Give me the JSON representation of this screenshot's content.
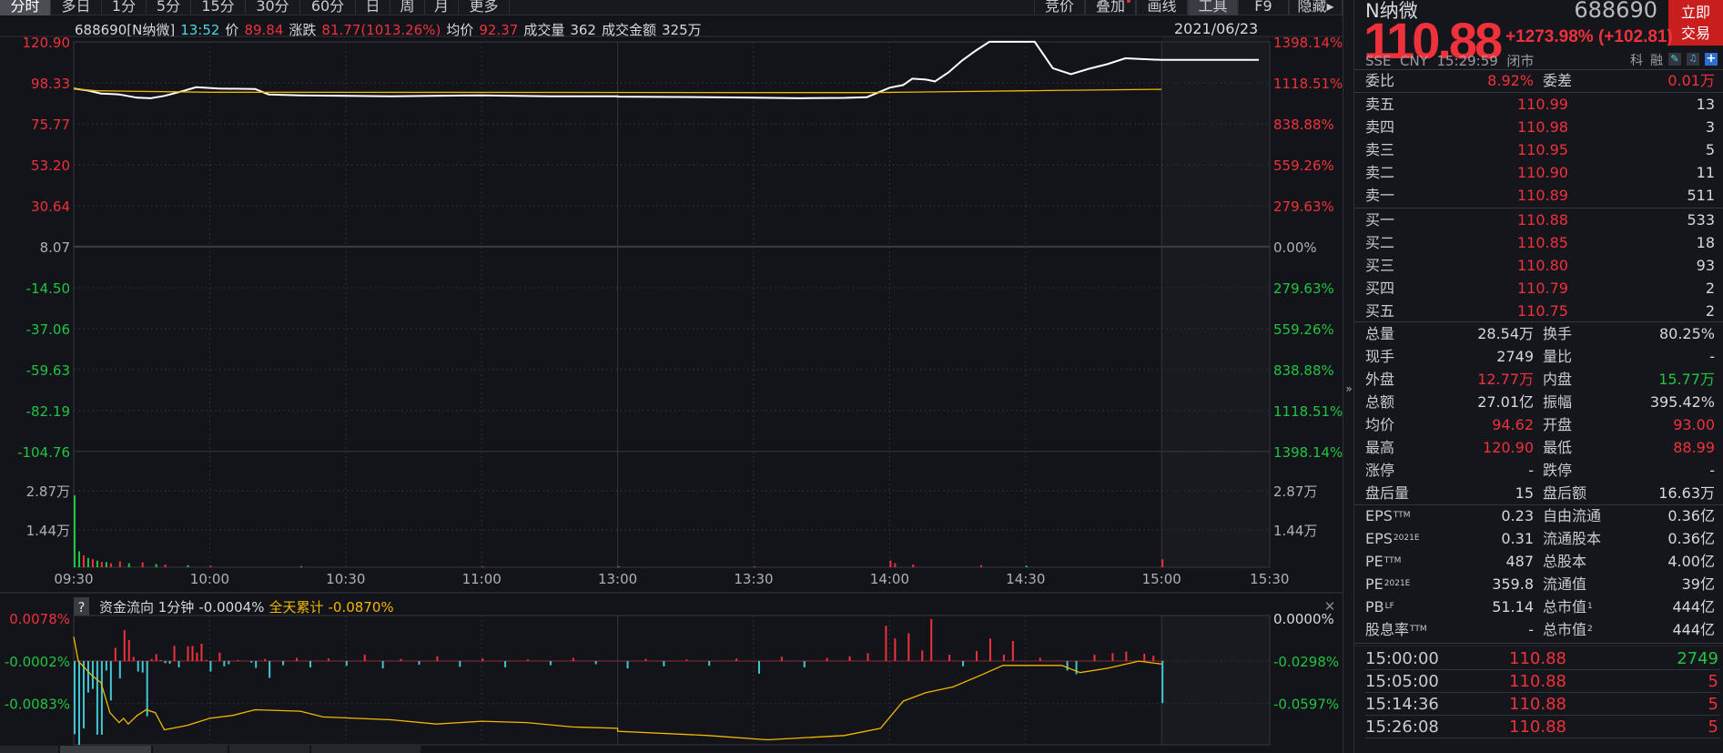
{
  "toolbar": {
    "left_tabs": [
      "分时",
      "多日",
      "1分",
      "5分",
      "15分",
      "30分",
      "60分",
      "日",
      "周",
      "月",
      "更多"
    ],
    "active_tab": "分时",
    "right_tabs": [
      "竞价",
      "叠加",
      "画线",
      "工具",
      "F9",
      "隐藏▸"
    ]
  },
  "info_bar": {
    "code_name": "688690[N纳微]",
    "time": "13:52",
    "price_label": "价",
    "price": "89.84",
    "change_label": "涨跌",
    "change": "81.77(1013.26%)",
    "avg_label": "均价",
    "avg": "92.37",
    "vol_label": "成交量",
    "vol": "362",
    "amount_label": "成交金额",
    "amount": "325万",
    "date": "2021/06/23"
  },
  "colors": {
    "up": "#f0313c",
    "down": "#21c442",
    "price_line": "#ffffff",
    "avg_line": "#f3b700",
    "flow_out": "#3fc8d4",
    "accent": "#c81e1e"
  },
  "chart_data": [
    {
      "type": "line",
      "name_hint": "price",
      "x_ticks": [
        "09:30",
        "10:00",
        "10:30",
        "11:00",
        "13:00",
        "13:30",
        "14:00",
        "14:30",
        "15:00",
        "15:30"
      ],
      "left_ticks": [
        "120.90",
        "98.33",
        "75.77",
        "53.20",
        "30.64",
        "8.07",
        "-14.50",
        "-37.06",
        "-59.63",
        "-82.19",
        "-104.76"
      ],
      "right_ticks": [
        "1398.14%",
        "1118.51%",
        "838.88%",
        "559.26%",
        "279.63%",
        "0.00%",
        "279.63%",
        "559.26%",
        "838.88%",
        "1118.51%",
        "1398.14%"
      ],
      "ylim": [
        -104.76,
        120.9
      ],
      "base": 8.07,
      "series": [
        {
          "key": "price",
          "points": [
            [
              "09:30",
              95.0
            ],
            [
              "09:33",
              94.0
            ],
            [
              "09:36",
              92.3
            ],
            [
              "09:40",
              91.8
            ],
            [
              "09:44",
              90.0
            ],
            [
              "09:47",
              89.7
            ],
            [
              "09:50",
              91.0
            ],
            [
              "09:54",
              93.6
            ],
            [
              "09:57",
              95.8
            ],
            [
              "10:02",
              95.0
            ],
            [
              "10:10",
              94.8
            ],
            [
              "10:13",
              91.8
            ],
            [
              "10:20",
              91.3
            ],
            [
              "10:40",
              90.8
            ],
            [
              "11:00",
              91.3
            ],
            [
              "11:15",
              90.8
            ],
            [
              "11:30",
              90.8
            ],
            [
              "13:00",
              90.6
            ],
            [
              "13:20",
              90.3
            ],
            [
              "13:30",
              90.0
            ],
            [
              "13:40",
              89.7
            ],
            [
              "13:50",
              89.9
            ],
            [
              "13:55",
              90.3
            ],
            [
              "14:00",
              95.5
            ],
            [
              "14:03",
              97.0
            ],
            [
              "14:05",
              100.5
            ],
            [
              "14:08",
              100.0
            ],
            [
              "14:10",
              99.0
            ],
            [
              "14:13",
              104.0
            ],
            [
              "14:16",
              110.6
            ],
            [
              "14:19",
              116.0
            ],
            [
              "14:22",
              120.9
            ],
            [
              "14:32",
              120.9
            ],
            [
              "14:36",
              106.3
            ],
            [
              "14:40",
              103.0
            ],
            [
              "14:44",
              106.0
            ],
            [
              "14:48",
              108.5
            ],
            [
              "14:52",
              111.8
            ],
            [
              "15:00",
              110.88
            ],
            [
              "15:27",
              110.88
            ]
          ]
        },
        {
          "key": "avg",
          "points": [
            [
              "09:30",
              94.9
            ],
            [
              "09:35",
              93.8
            ],
            [
              "10:00",
              93.0
            ],
            [
              "13:55",
              92.8
            ],
            [
              "14:10",
              93.2
            ],
            [
              "14:30",
              93.8
            ],
            [
              "15:00",
              94.62
            ]
          ]
        }
      ]
    },
    {
      "type": "bar",
      "name_hint": "volume",
      "ticks": [
        "2.87万",
        "1.44万"
      ],
      "unit": "万",
      "ylim": [
        0,
        2.87
      ],
      "bars": [
        [
          "09:30",
          2.7,
          "down"
        ],
        [
          "09:31",
          0.6,
          "down"
        ],
        [
          "09:32",
          0.45,
          "up"
        ],
        [
          "09:33",
          0.35,
          "down"
        ],
        [
          "09:34",
          0.3,
          "up"
        ],
        [
          "09:35",
          0.25,
          "down"
        ],
        [
          "09:36",
          0.2,
          "up"
        ],
        [
          "09:37",
          0.2,
          "down"
        ],
        [
          "09:38",
          0.15,
          "up"
        ],
        [
          "09:40",
          0.22,
          "up"
        ],
        [
          "09:42",
          0.15,
          "down"
        ],
        [
          "09:45",
          0.18,
          "up"
        ],
        [
          "09:48",
          0.12,
          "down"
        ],
        [
          "09:50",
          0.1,
          "up"
        ],
        [
          "09:55",
          0.08,
          "down"
        ],
        [
          "10:00",
          0.06,
          "up"
        ],
        [
          "10:20",
          0.04,
          "down"
        ],
        [
          "11:00",
          0.03,
          "up"
        ],
        [
          "13:00",
          0.04,
          "down"
        ],
        [
          "13:30",
          0.03,
          "up"
        ],
        [
          "14:00",
          0.25,
          "up"
        ],
        [
          "14:01",
          0.15,
          "up"
        ],
        [
          "14:05",
          0.1,
          "up"
        ],
        [
          "14:20",
          0.08,
          "up"
        ],
        [
          "14:30",
          0.06,
          "down"
        ],
        [
          "15:00",
          0.3,
          "up"
        ]
      ]
    },
    {
      "type": "bar",
      "name_hint": "fund_flow",
      "header": {
        "help": "?",
        "title": "资金流向 1分钟",
        "value": "-0.0004%",
        "cum_label": "全天累计",
        "cum_value": "-0.0870%"
      },
      "left_ticks": [
        "0.0078%",
        "-0.0002%",
        "-0.0083%"
      ],
      "right_ticks": [
        "0.0000%",
        "-0.0298%",
        "-0.0597%"
      ],
      "bars": [
        [
          "09:30",
          -0.0139
        ],
        [
          "09:31",
          -0.0165
        ],
        [
          "09:32",
          -0.0128
        ],
        [
          "09:33",
          -0.006
        ],
        [
          "09:34",
          -0.0053
        ],
        [
          "09:35",
          -0.014
        ],
        [
          "09:36",
          -0.014
        ],
        [
          "09:37",
          -0.0018
        ],
        [
          "09:38",
          -0.0075
        ],
        [
          "09:39",
          0.0025
        ],
        [
          "09:40",
          -0.0033
        ],
        [
          "09:41",
          0.0059
        ],
        [
          "09:42",
          0.004
        ],
        [
          "09:43",
          0.0008
        ],
        [
          "09:44",
          -0.002
        ],
        [
          "09:45",
          -0.0022
        ],
        [
          "09:46",
          -0.0105
        ],
        [
          "09:47",
          0.0004
        ],
        [
          "09:48",
          0.0013
        ],
        [
          "09:49",
          0.0002
        ],
        [
          "09:50",
          -0.0004
        ],
        [
          "09:51",
          -0.0005
        ],
        [
          "09:52",
          0.0029
        ],
        [
          "09:53",
          -0.0012
        ],
        [
          "09:55",
          0.0028
        ],
        [
          "09:56",
          0.0029
        ],
        [
          "09:57",
          0.0016
        ],
        [
          "09:58",
          0.0033
        ],
        [
          "09:59",
          0.0002
        ],
        [
          "10:00",
          -0.002
        ],
        [
          "10:02",
          0.0016
        ],
        [
          "10:03",
          -0.001
        ],
        [
          "10:04",
          -0.0006
        ],
        [
          "10:06",
          0.0002
        ],
        [
          "10:09",
          -0.0003
        ],
        [
          "10:10",
          -0.0013
        ],
        [
          "10:12",
          0.0004
        ],
        [
          "10:13",
          -0.0032
        ],
        [
          "10:16",
          -0.0008
        ],
        [
          "10:19",
          0.0006
        ],
        [
          "10:22",
          -0.0012
        ],
        [
          "10:26",
          0.0005
        ],
        [
          "10:30",
          -0.0009
        ],
        [
          "10:34",
          0.0012
        ],
        [
          "10:38",
          -0.0014
        ],
        [
          "10:42",
          0.0004
        ],
        [
          "10:46",
          -0.0007
        ],
        [
          "10:50",
          0.0009
        ],
        [
          "10:55",
          -0.0011
        ],
        [
          "11:00",
          0.0005
        ],
        [
          "11:05",
          -0.0012
        ],
        [
          "11:10",
          0.0003
        ],
        [
          "11:15",
          -0.0008
        ],
        [
          "11:20",
          0.0006
        ],
        [
          "11:25",
          -0.0006
        ],
        [
          "13:02",
          -0.0014
        ],
        [
          "13:06",
          0.0004
        ],
        [
          "13:10",
          -0.001
        ],
        [
          "13:15",
          0.0003
        ],
        [
          "13:20",
          -0.0009
        ],
        [
          "13:26",
          0.0005
        ],
        [
          "13:31",
          -0.0024
        ],
        [
          "13:36",
          0.0008
        ],
        [
          "13:41",
          -0.0012
        ],
        [
          "13:46",
          0.0006
        ],
        [
          "13:51",
          0.0009
        ],
        [
          "13:55",
          0.0015
        ],
        [
          "13:59",
          0.0067
        ],
        [
          "14:01",
          0.0043
        ],
        [
          "14:04",
          0.0053
        ],
        [
          "14:07",
          0.002
        ],
        [
          "14:09",
          0.008
        ],
        [
          "14:13",
          0.0012
        ],
        [
          "14:16",
          -0.001
        ],
        [
          "14:19",
          0.0019
        ],
        [
          "14:22",
          0.0043
        ],
        [
          "14:25",
          0.0012
        ],
        [
          "14:27",
          0.0038
        ],
        [
          "14:33",
          0.0006
        ],
        [
          "14:39",
          -0.0018
        ],
        [
          "14:41",
          -0.0025
        ],
        [
          "14:45",
          0.0012
        ],
        [
          "14:49",
          0.0015
        ],
        [
          "14:52",
          0.0018
        ],
        [
          "14:56",
          0.0014
        ],
        [
          "14:58",
          0.001
        ],
        [
          "15:00",
          -0.008
        ]
      ],
      "cumulative": [
        [
          "09:30",
          -0.013
        ],
        [
          "09:31",
          -0.03
        ],
        [
          "09:34",
          -0.04
        ],
        [
          "09:36",
          -0.045
        ],
        [
          "09:38",
          -0.066
        ],
        [
          "09:40",
          -0.073
        ],
        [
          "09:41",
          -0.07
        ],
        [
          "09:42",
          -0.074
        ],
        [
          "09:44",
          -0.068
        ],
        [
          "09:46",
          -0.064
        ],
        [
          "09:48",
          -0.066
        ],
        [
          "09:50",
          -0.078
        ],
        [
          "09:55",
          -0.075
        ],
        [
          "10:00",
          -0.07
        ],
        [
          "10:05",
          -0.068
        ],
        [
          "10:10",
          -0.064
        ],
        [
          "10:20",
          -0.065
        ],
        [
          "10:25",
          -0.069
        ],
        [
          "10:40",
          -0.071
        ],
        [
          "10:50",
          -0.074
        ],
        [
          "11:00",
          -0.072
        ],
        [
          "11:10",
          -0.073
        ],
        [
          "11:20",
          -0.076
        ],
        [
          "11:30",
          -0.077
        ],
        [
          "13:00",
          -0.079
        ],
        [
          "13:20",
          -0.082
        ],
        [
          "13:33",
          -0.085
        ],
        [
          "13:50",
          -0.082
        ],
        [
          "13:58",
          -0.077
        ],
        [
          "14:03",
          -0.058
        ],
        [
          "14:08",
          -0.052
        ],
        [
          "14:14",
          -0.048
        ],
        [
          "14:20",
          -0.04
        ],
        [
          "14:25",
          -0.033
        ],
        [
          "14:38",
          -0.033
        ],
        [
          "14:42",
          -0.038
        ],
        [
          "14:48",
          -0.035
        ],
        [
          "14:55",
          -0.03
        ],
        [
          "15:00",
          -0.032
        ]
      ]
    }
  ],
  "quote": {
    "name": "N纳微",
    "code": "688690",
    "trade_button": [
      "立即",
      "交易"
    ],
    "price": "110.88",
    "change": "+1273.98% (+102.81)",
    "meta": "SSE  CNY  15:29:59  闭市",
    "tags": [
      "科",
      "融"
    ],
    "weibi": {
      "l": "委比",
      "v": "8.92%",
      "l2": "委差",
      "v2": "0.01万"
    },
    "asks": [
      [
        "卖五",
        "110.99",
        "13"
      ],
      [
        "卖四",
        "110.98",
        "3"
      ],
      [
        "卖三",
        "110.95",
        "5"
      ],
      [
        "卖二",
        "110.90",
        "11"
      ],
      [
        "卖一",
        "110.89",
        "511"
      ]
    ],
    "bids": [
      [
        "买一",
        "110.88",
        "533"
      ],
      [
        "买二",
        "110.85",
        "18"
      ],
      [
        "买三",
        "110.80",
        "93"
      ],
      [
        "买四",
        "110.79",
        "2"
      ],
      [
        "买五",
        "110.75",
        "2"
      ]
    ],
    "stats": [
      {
        "l": "总量",
        "v": "28.54万",
        "c": "w",
        "l2": "换手",
        "v2": "80.25%",
        "c2": "w"
      },
      {
        "l": "现手",
        "v": "2749",
        "c": "w",
        "l2": "量比",
        "v2": "-",
        "c2": "w"
      },
      {
        "l": "外盘",
        "v": "12.77万",
        "c": "r",
        "l2": "内盘",
        "v2": "15.77万",
        "c2": "g"
      },
      {
        "l": "总额",
        "v": "27.01亿",
        "c": "w",
        "l2": "振幅",
        "v2": "395.42%",
        "c2": "w"
      },
      {
        "l": "均价",
        "v": "94.62",
        "c": "r",
        "l2": "开盘",
        "v2": "93.00",
        "c2": "r"
      },
      {
        "l": "最高",
        "v": "120.90",
        "c": "r",
        "l2": "最低",
        "v2": "88.99",
        "c2": "r"
      },
      {
        "l": "涨停",
        "v": "-",
        "c": "w",
        "l2": "跌停",
        "v2": "-",
        "c2": "w"
      },
      {
        "l": "盘后量",
        "v": "15",
        "c": "w",
        "l2": "盘后额",
        "v2": "16.63万",
        "c2": "w"
      }
    ],
    "fundamentals": [
      {
        "l": "EPS",
        "s": "TTM",
        "v": "0.23",
        "l2": "自由流通",
        "s2": "",
        "v2": "0.36亿"
      },
      {
        "l": "EPS",
        "s": "2021E",
        "v": "0.31",
        "l2": "流通股本",
        "s2": "",
        "v2": "0.36亿"
      },
      {
        "l": "PE",
        "s": "TTM",
        "v": "487",
        "l2": "总股本",
        "s2": "",
        "v2": "4.00亿"
      },
      {
        "l": "PE",
        "s": "2021E",
        "v": "359.8",
        "l2": "流通值",
        "s2": "",
        "v2": "39亿"
      },
      {
        "l": "PB",
        "s": "LF",
        "v": "51.14",
        "l2": "总市值",
        "s2": "1",
        "v2": "444亿"
      },
      {
        "l": "股息率",
        "s": "TTM",
        "v": "-",
        "l2": "总市值",
        "s2": "2",
        "v2": "444亿"
      }
    ],
    "trades": [
      {
        "t": "15:00:00",
        "p": "110.88",
        "v": "2749",
        "c": "g"
      },
      {
        "t": "15:05:00",
        "p": "110.88",
        "v": "5",
        "c": "r"
      },
      {
        "t": "15:14:36",
        "p": "110.88",
        "v": "5",
        "c": "r"
      },
      {
        "t": "15:26:08",
        "p": "110.88",
        "v": "5",
        "c": "r"
      }
    ]
  }
}
